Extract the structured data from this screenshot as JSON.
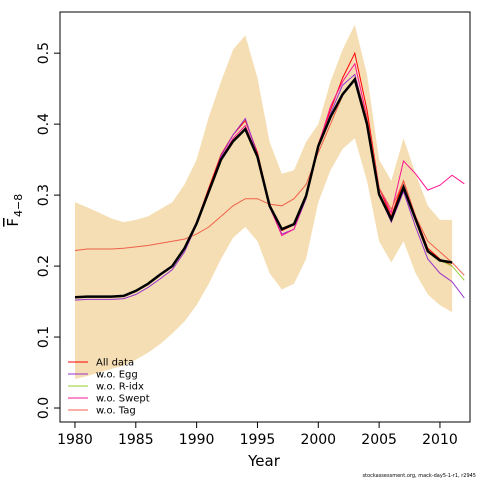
{
  "chart_data": {
    "type": "line",
    "xlabel": "Year",
    "ylabel": "F",
    "ylabel_sub": "4−8",
    "footer": "stockassessment.org, mack-day5-1-r1, r2945",
    "x": [
      1980,
      1981,
      1982,
      1983,
      1984,
      1985,
      1986,
      1987,
      1988,
      1989,
      1990,
      1991,
      1992,
      1993,
      1994,
      1995,
      1996,
      1997,
      1998,
      1999,
      2000,
      2001,
      2002,
      2003,
      2004,
      2005,
      2006,
      2007,
      2008,
      2009,
      2010,
      2011,
      2012
    ],
    "xlim": [
      1978.77,
      2012.47
    ],
    "xticks": [
      1980,
      1985,
      1990,
      1995,
      2000,
      2005,
      2010
    ],
    "ylim": [
      -0.0197,
      0.558
    ],
    "yticks": [
      {
        "value": 0,
        "label": "0.0"
      },
      0.1,
      0.2,
      0.3,
      0.4,
      0.5
    ],
    "band": {
      "color": "#f5deb3",
      "upper": [
        0.29,
        0.283,
        0.275,
        0.267,
        0.262,
        0.265,
        0.27,
        0.28,
        0.29,
        0.315,
        0.35,
        0.41,
        0.46,
        0.505,
        0.525,
        0.465,
        0.375,
        0.33,
        0.335,
        0.375,
        0.4,
        0.46,
        0.505,
        0.54,
        0.47,
        0.35,
        0.32,
        0.38,
        0.33,
        0.285,
        0.265,
        0.265,
        null
      ],
      "lower": [
        0.041,
        0.045,
        0.05,
        0.055,
        0.06,
        0.068,
        0.078,
        0.09,
        0.105,
        0.122,
        0.145,
        0.175,
        0.21,
        0.24,
        0.255,
        0.235,
        0.19,
        0.167,
        0.175,
        0.21,
        0.29,
        0.335,
        0.365,
        0.38,
        0.32,
        0.235,
        0.205,
        0.235,
        0.19,
        0.16,
        0.145,
        0.135,
        null
      ]
    },
    "estimate": {
      "color": "#000000",
      "values": [
        0.156,
        0.157,
        0.157,
        0.157,
        0.158,
        0.165,
        0.175,
        0.188,
        0.2,
        0.225,
        0.26,
        0.305,
        0.35,
        0.376,
        0.393,
        0.354,
        0.285,
        0.252,
        0.259,
        0.299,
        0.369,
        0.41,
        0.442,
        0.463,
        0.4,
        0.301,
        0.266,
        0.311,
        0.266,
        0.221,
        0.208,
        0.205,
        null
      ]
    },
    "legend": "bottom-left",
    "series": [
      {
        "name": "All data",
        "color": "#ff0000",
        "values": [
          0.156,
          0.157,
          0.157,
          0.157,
          0.158,
          0.165,
          0.175,
          0.188,
          0.2,
          0.225,
          0.262,
          0.31,
          0.357,
          0.385,
          0.405,
          0.36,
          0.287,
          0.25,
          0.258,
          0.3,
          0.372,
          0.42,
          0.465,
          0.5,
          0.42,
          0.31,
          0.27,
          0.32,
          0.27,
          0.225,
          0.21,
          0.2,
          null
        ]
      },
      {
        "name": "w.o. Egg",
        "color": "#9932cc",
        "values": [
          0.152,
          0.153,
          0.153,
          0.153,
          0.154,
          0.16,
          0.17,
          0.182,
          0.195,
          0.22,
          0.258,
          0.305,
          0.355,
          0.385,
          0.408,
          0.357,
          0.283,
          0.245,
          0.252,
          0.295,
          0.368,
          0.415,
          0.455,
          0.47,
          0.405,
          0.3,
          0.262,
          0.305,
          0.255,
          0.21,
          0.19,
          0.178,
          0.155
        ]
      },
      {
        "name": "w.o. R-idx",
        "color": "#9acd32",
        "values": [
          0.156,
          0.157,
          0.157,
          0.157,
          0.158,
          0.165,
          0.175,
          0.188,
          0.2,
          0.225,
          0.26,
          0.305,
          0.35,
          0.376,
          0.393,
          0.354,
          0.285,
          0.252,
          0.259,
          0.299,
          0.369,
          0.41,
          0.442,
          0.463,
          0.4,
          0.301,
          0.266,
          0.311,
          0.266,
          0.221,
          0.208,
          0.2,
          0.18
        ]
      },
      {
        "name": "w.o. Swept",
        "color": "#ff1493",
        "values": [
          0.156,
          0.157,
          0.157,
          0.157,
          0.158,
          0.165,
          0.175,
          0.188,
          0.2,
          0.225,
          0.26,
          0.305,
          0.352,
          0.38,
          0.398,
          0.356,
          0.284,
          0.243,
          0.252,
          0.298,
          0.37,
          0.425,
          0.46,
          0.485,
          0.41,
          0.31,
          0.275,
          0.348,
          0.33,
          0.307,
          0.314,
          0.328,
          0.316
        ]
      },
      {
        "name": "w.o. Tag",
        "color": "#f0604a",
        "values": [
          0.222,
          0.224,
          0.224,
          0.224,
          0.225,
          0.227,
          0.229,
          0.232,
          0.235,
          0.238,
          0.245,
          0.255,
          0.27,
          0.285,
          0.295,
          0.295,
          0.287,
          0.285,
          0.295,
          0.315,
          0.36,
          0.4,
          0.44,
          0.465,
          0.41,
          0.31,
          0.28,
          0.32,
          0.27,
          0.235,
          0.22,
          0.205,
          0.187
        ]
      }
    ]
  }
}
